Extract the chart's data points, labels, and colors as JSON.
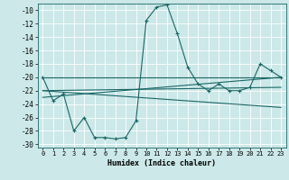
{
  "xlabel": "Humidex (Indice chaleur)",
  "background_color": "#cce8e8",
  "grid_color": "#ffffff",
  "line_color": "#1a6666",
  "xlim": [
    -0.5,
    23.5
  ],
  "ylim": [
    -30.5,
    -9.0
  ],
  "xticks": [
    0,
    1,
    2,
    3,
    4,
    5,
    6,
    7,
    8,
    9,
    10,
    11,
    12,
    13,
    14,
    15,
    16,
    17,
    18,
    19,
    20,
    21,
    22,
    23
  ],
  "yticks": [
    -10,
    -12,
    -14,
    -16,
    -18,
    -20,
    -22,
    -24,
    -26,
    -28,
    -30
  ],
  "series_main": {
    "x": [
      0,
      1,
      2,
      3,
      4,
      5,
      6,
      7,
      8,
      9,
      10,
      11,
      12,
      13,
      14,
      15,
      16,
      17,
      18,
      19,
      20,
      21,
      22,
      23
    ],
    "y": [
      -20,
      -23.5,
      -22.5,
      -28,
      -26,
      -29,
      -29,
      -29.2,
      -29,
      -26.5,
      -11.5,
      -9.5,
      -9.2,
      -13.5,
      -18.5,
      -21,
      -22,
      -21,
      -22,
      -22,
      -21.5,
      -18,
      -19,
      -20
    ]
  },
  "series_lines": [
    {
      "x": [
        0,
        23
      ],
      "y": [
        -20,
        -20
      ]
    },
    {
      "x": [
        0,
        23
      ],
      "y": [
        -22,
        -21.5
      ]
    },
    {
      "x": [
        0,
        23
      ],
      "y": [
        -22,
        -24.5
      ]
    },
    {
      "x": [
        0,
        23
      ],
      "y": [
        -23,
        -20
      ]
    }
  ]
}
